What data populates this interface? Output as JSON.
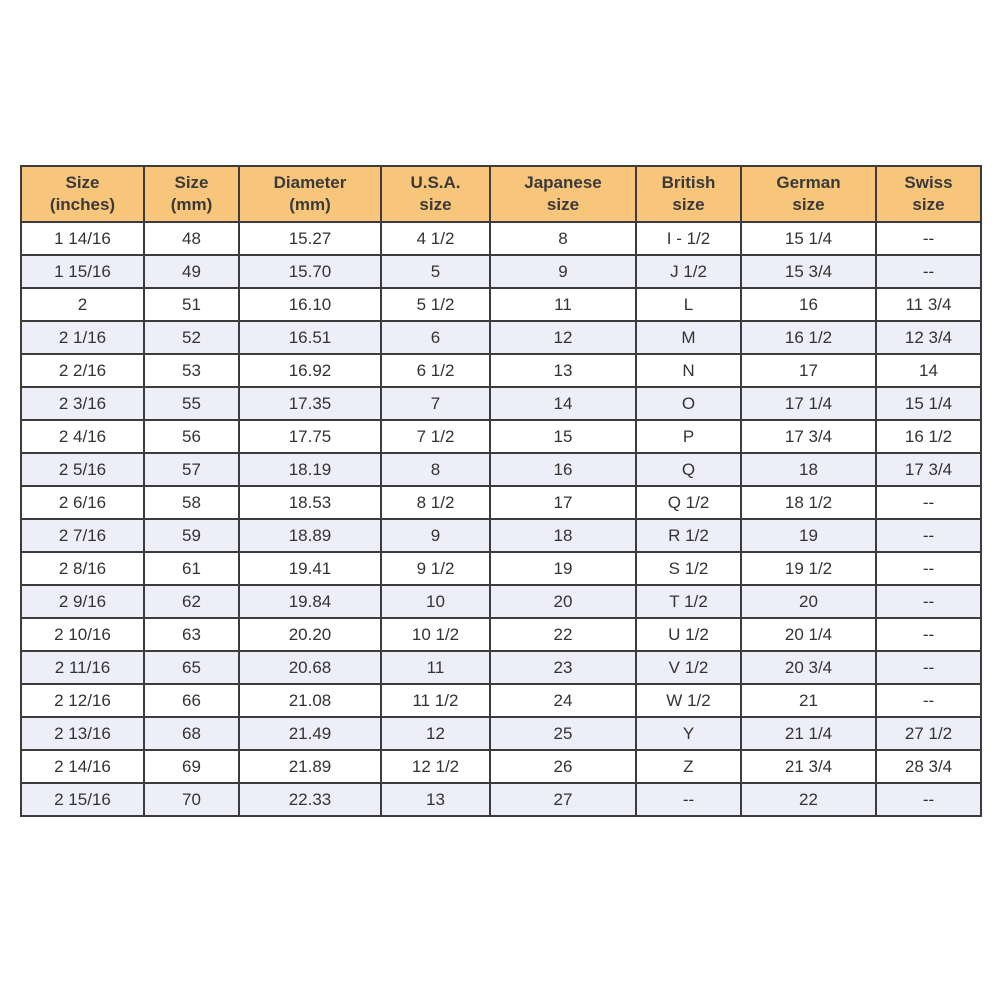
{
  "colors": {
    "header_bg": "#f8c67a",
    "alt_row_bg": "#eeeef8",
    "border": "#3c3c3c"
  },
  "headers": [
    [
      "Size",
      "(inches)"
    ],
    [
      "Size",
      "(mm)"
    ],
    [
      "Diameter",
      "(mm)"
    ],
    [
      "U.S.A.",
      "size"
    ],
    [
      "Japanese",
      "size"
    ],
    [
      "British",
      "size"
    ],
    [
      "German",
      "size"
    ],
    [
      "Swiss",
      "size"
    ]
  ],
  "rows": [
    [
      "1 14/16",
      "48",
      "15.27",
      "4 1/2",
      "8",
      "I - 1/2",
      "15 1/4",
      "--"
    ],
    [
      "1 15/16",
      "49",
      "15.70",
      "5",
      "9",
      "J 1/2",
      "15 3/4",
      "--"
    ],
    [
      "2",
      "51",
      "16.10",
      "5 1/2",
      "11",
      "L",
      "16",
      "11 3/4"
    ],
    [
      "2 1/16",
      "52",
      "16.51",
      "6",
      "12",
      "M",
      "16 1/2",
      "12 3/4"
    ],
    [
      "2 2/16",
      "53",
      "16.92",
      "6 1/2",
      "13",
      "N",
      "17",
      "14"
    ],
    [
      "2 3/16",
      "55",
      "17.35",
      "7",
      "14",
      "O",
      "17 1/4",
      "15 1/4"
    ],
    [
      "2 4/16",
      "56",
      "17.75",
      "7 1/2",
      "15",
      "P",
      "17 3/4",
      "16 1/2"
    ],
    [
      "2 5/16",
      "57",
      "18.19",
      "8",
      "16",
      "Q",
      "18",
      "17 3/4"
    ],
    [
      "2 6/16",
      "58",
      "18.53",
      "8 1/2",
      "17",
      "Q 1/2",
      "18 1/2",
      "--"
    ],
    [
      "2 7/16",
      "59",
      "18.89",
      "9",
      "18",
      "R 1/2",
      "19",
      "--"
    ],
    [
      "2 8/16",
      "61",
      "19.41",
      "9 1/2",
      "19",
      "S 1/2",
      "19 1/2",
      "--"
    ],
    [
      "2 9/16",
      "62",
      "19.84",
      "10",
      "20",
      "T 1/2",
      "20",
      "--"
    ],
    [
      "2 10/16",
      "63",
      "20.20",
      "10 1/2",
      "22",
      "U 1/2",
      "20 1/4",
      "--"
    ],
    [
      "2 11/16",
      "65",
      "20.68",
      "11",
      "23",
      "V 1/2",
      "20 3/4",
      "--"
    ],
    [
      "2 12/16",
      "66",
      "21.08",
      "11 1/2",
      "24",
      "W 1/2",
      "21",
      "--"
    ],
    [
      "2 13/16",
      "68",
      "21.49",
      "12",
      "25",
      "Y",
      "21 1/4",
      "27 1/2"
    ],
    [
      "2 14/16",
      "69",
      "21.89",
      "12 1/2",
      "26",
      "Z",
      "21 3/4",
      "28 3/4"
    ],
    [
      "2 15/16",
      "70",
      "22.33",
      "13",
      "27",
      "--",
      "22",
      "--"
    ]
  ]
}
